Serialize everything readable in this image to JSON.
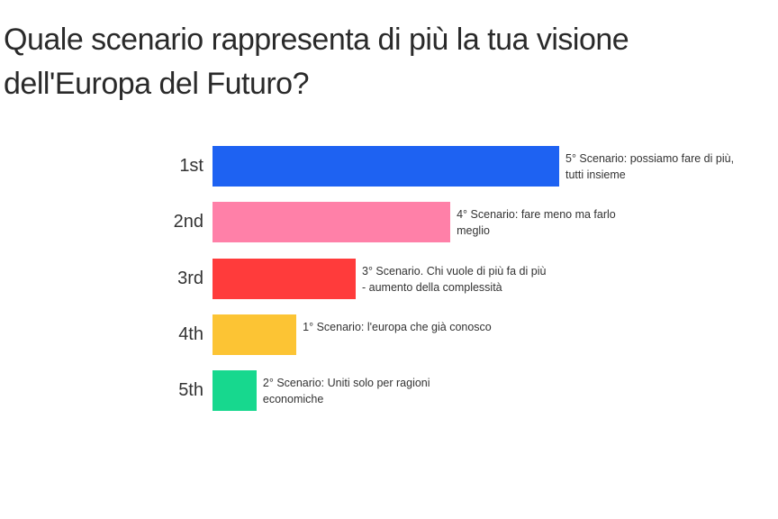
{
  "chart_data": {
    "type": "bar",
    "orientation": "horizontal",
    "title": "Quale scenario rappresenta di più la tua visione dell'Europa del Futuro?",
    "categories": [
      "1st",
      "2nd",
      "3rd",
      "4th",
      "5th"
    ],
    "labels": [
      "5° Scenario: possiamo fare di più, tutti insieme",
      "4° Scenario: fare meno ma farlo meglio",
      "3° Scenario. Chi vuole di più fa di più - aumento della complessità",
      "1° Scenario: l'europa che già conosco",
      "2° Scenario: Uniti solo per ragioni economiche"
    ],
    "values": [
      100,
      68.6,
      41.3,
      24.2,
      12.7
    ],
    "value_units": "relative score (top = 100)",
    "colors": [
      "#1e62f2",
      "#ff80a8",
      "#ff3b3b",
      "#fcc434",
      "#17d88e"
    ],
    "xlim": [
      0,
      100
    ]
  }
}
